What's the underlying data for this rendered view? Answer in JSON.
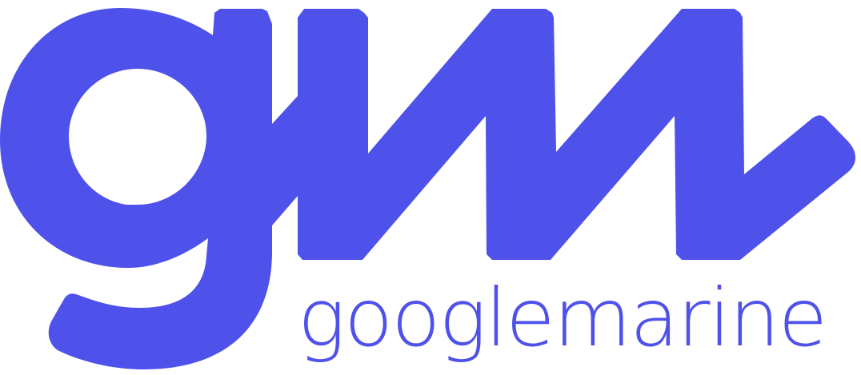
{
  "logo": {
    "mark_name": "gm-logo-mark",
    "wordmark": "googlemarine",
    "color": "#4f52ea"
  }
}
